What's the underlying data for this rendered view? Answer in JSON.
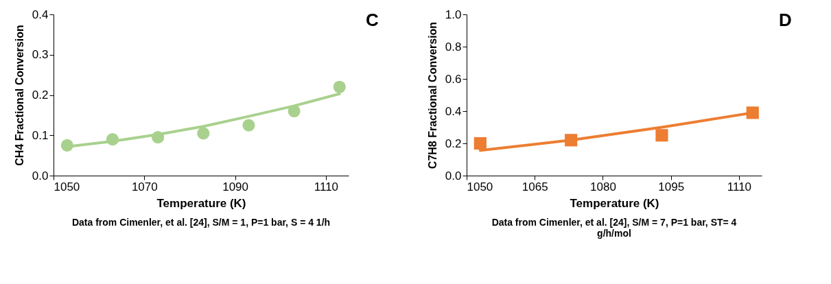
{
  "chart_data": [
    {
      "type": "scatter",
      "xlabel": "Temperature (K)",
      "ylabel": "CH4 Fractional Conversion",
      "annotations": [
        "C",
        "Data from Cimenler, et al. [24], S/M = 1, P=1 bar, S = 4 1/h"
      ],
      "xlim": [
        1050,
        1115
      ],
      "xticks": [
        1050,
        1070,
        1090,
        1110
      ],
      "ylim": [
        0,
        0.4
      ],
      "yticks": [
        {
          "value": 0,
          "label": "0.0"
        },
        {
          "value": 0.1,
          "label": "0.1"
        },
        {
          "value": 0.2,
          "label": "0.2"
        },
        {
          "value": 0.3,
          "label": "0.3"
        },
        {
          "value": 0.4,
          "label": "0.4"
        }
      ],
      "grid": false,
      "series": [
        {
          "type": "line",
          "color": "#a9d18e",
          "marker": "none",
          "line_style": "solid",
          "x": [
            1053,
            1063,
            1073,
            1083,
            1093,
            1103,
            1113
          ],
          "values": [
            0.072,
            0.085,
            0.102,
            0.122,
            0.147,
            0.173,
            0.203
          ]
        },
        {
          "color": "#a9d18e",
          "marker": "circle",
          "x": [
            1053,
            1063,
            1073,
            1083,
            1093,
            1103,
            1113
          ],
          "values": [
            0.075,
            0.09,
            0.095,
            0.105,
            0.125,
            0.16,
            0.22
          ]
        }
      ]
    },
    {
      "type": "scatter",
      "xlabel": "Temperature (K)",
      "ylabel": "C7H8 Fractional Conversion",
      "annotations": [
        "D",
        "Data from Cimenler, et al. [24], S/M = 7, P=1 bar, ST= 4",
        "g/h/mol"
      ],
      "xlim": [
        1050,
        1115
      ],
      "xticks": [
        1050,
        1065,
        1080,
        1095,
        1110
      ],
      "ylim": [
        0,
        1
      ],
      "yticks": [
        {
          "value": 0,
          "label": "0.0"
        },
        {
          "value": 0.2,
          "label": "0.2"
        },
        {
          "value": 0.4,
          "label": "0.4"
        },
        {
          "value": 0.6,
          "label": "0.6"
        },
        {
          "value": 0.8,
          "label": "0.8"
        },
        {
          "value": 1,
          "label": "1.0"
        }
      ],
      "grid": false,
      "series": [
        {
          "type": "line",
          "color": "#ed7d31",
          "marker": "none",
          "line_style": "solid",
          "x": [
            1053,
            1073,
            1093,
            1113
          ],
          "values": [
            0.156,
            0.22,
            0.3,
            0.39
          ]
        },
        {
          "color": "#ed7d31",
          "marker": "square",
          "x": [
            1053,
            1073,
            1093,
            1113
          ],
          "values": [
            0.2,
            0.22,
            0.25,
            0.39
          ]
        }
      ]
    }
  ]
}
